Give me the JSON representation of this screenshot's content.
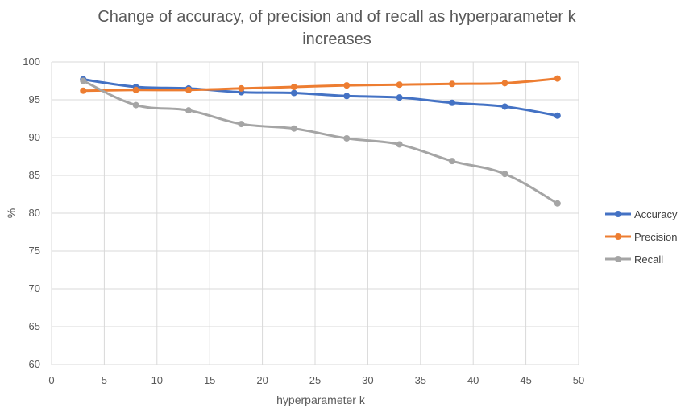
{
  "chart_data": {
    "type": "line",
    "title_lines": [
      "Change of accuracy, of precision and of recall as hyperparameter k",
      "increases"
    ],
    "xlabel": "hyperparameter k",
    "ylabel": "%",
    "xlim": [
      0,
      50
    ],
    "ylim": [
      60,
      100
    ],
    "x_ticks": [
      0,
      5,
      10,
      15,
      20,
      25,
      30,
      35,
      40,
      45,
      50
    ],
    "y_ticks": [
      60,
      65,
      70,
      75,
      80,
      85,
      90,
      95,
      100
    ],
    "grid": true,
    "legend_position": "right",
    "x": [
      3,
      8,
      13,
      18,
      23,
      28,
      33,
      38,
      43,
      48
    ],
    "series": [
      {
        "name": "Accuracy",
        "color": "#4472C4",
        "values": [
          97.7,
          96.7,
          96.5,
          96.0,
          95.9,
          95.5,
          95.3,
          94.6,
          94.1,
          92.9
        ]
      },
      {
        "name": "Precision",
        "color": "#ED7D31",
        "values": [
          96.2,
          96.3,
          96.3,
          96.5,
          96.7,
          96.9,
          97.0,
          97.1,
          97.2,
          97.8
        ]
      },
      {
        "name": "Recall",
        "color": "#A5A5A5",
        "values": [
          97.5,
          94.3,
          93.6,
          91.8,
          91.2,
          89.9,
          89.1,
          86.9,
          85.2,
          81.3
        ]
      }
    ]
  }
}
